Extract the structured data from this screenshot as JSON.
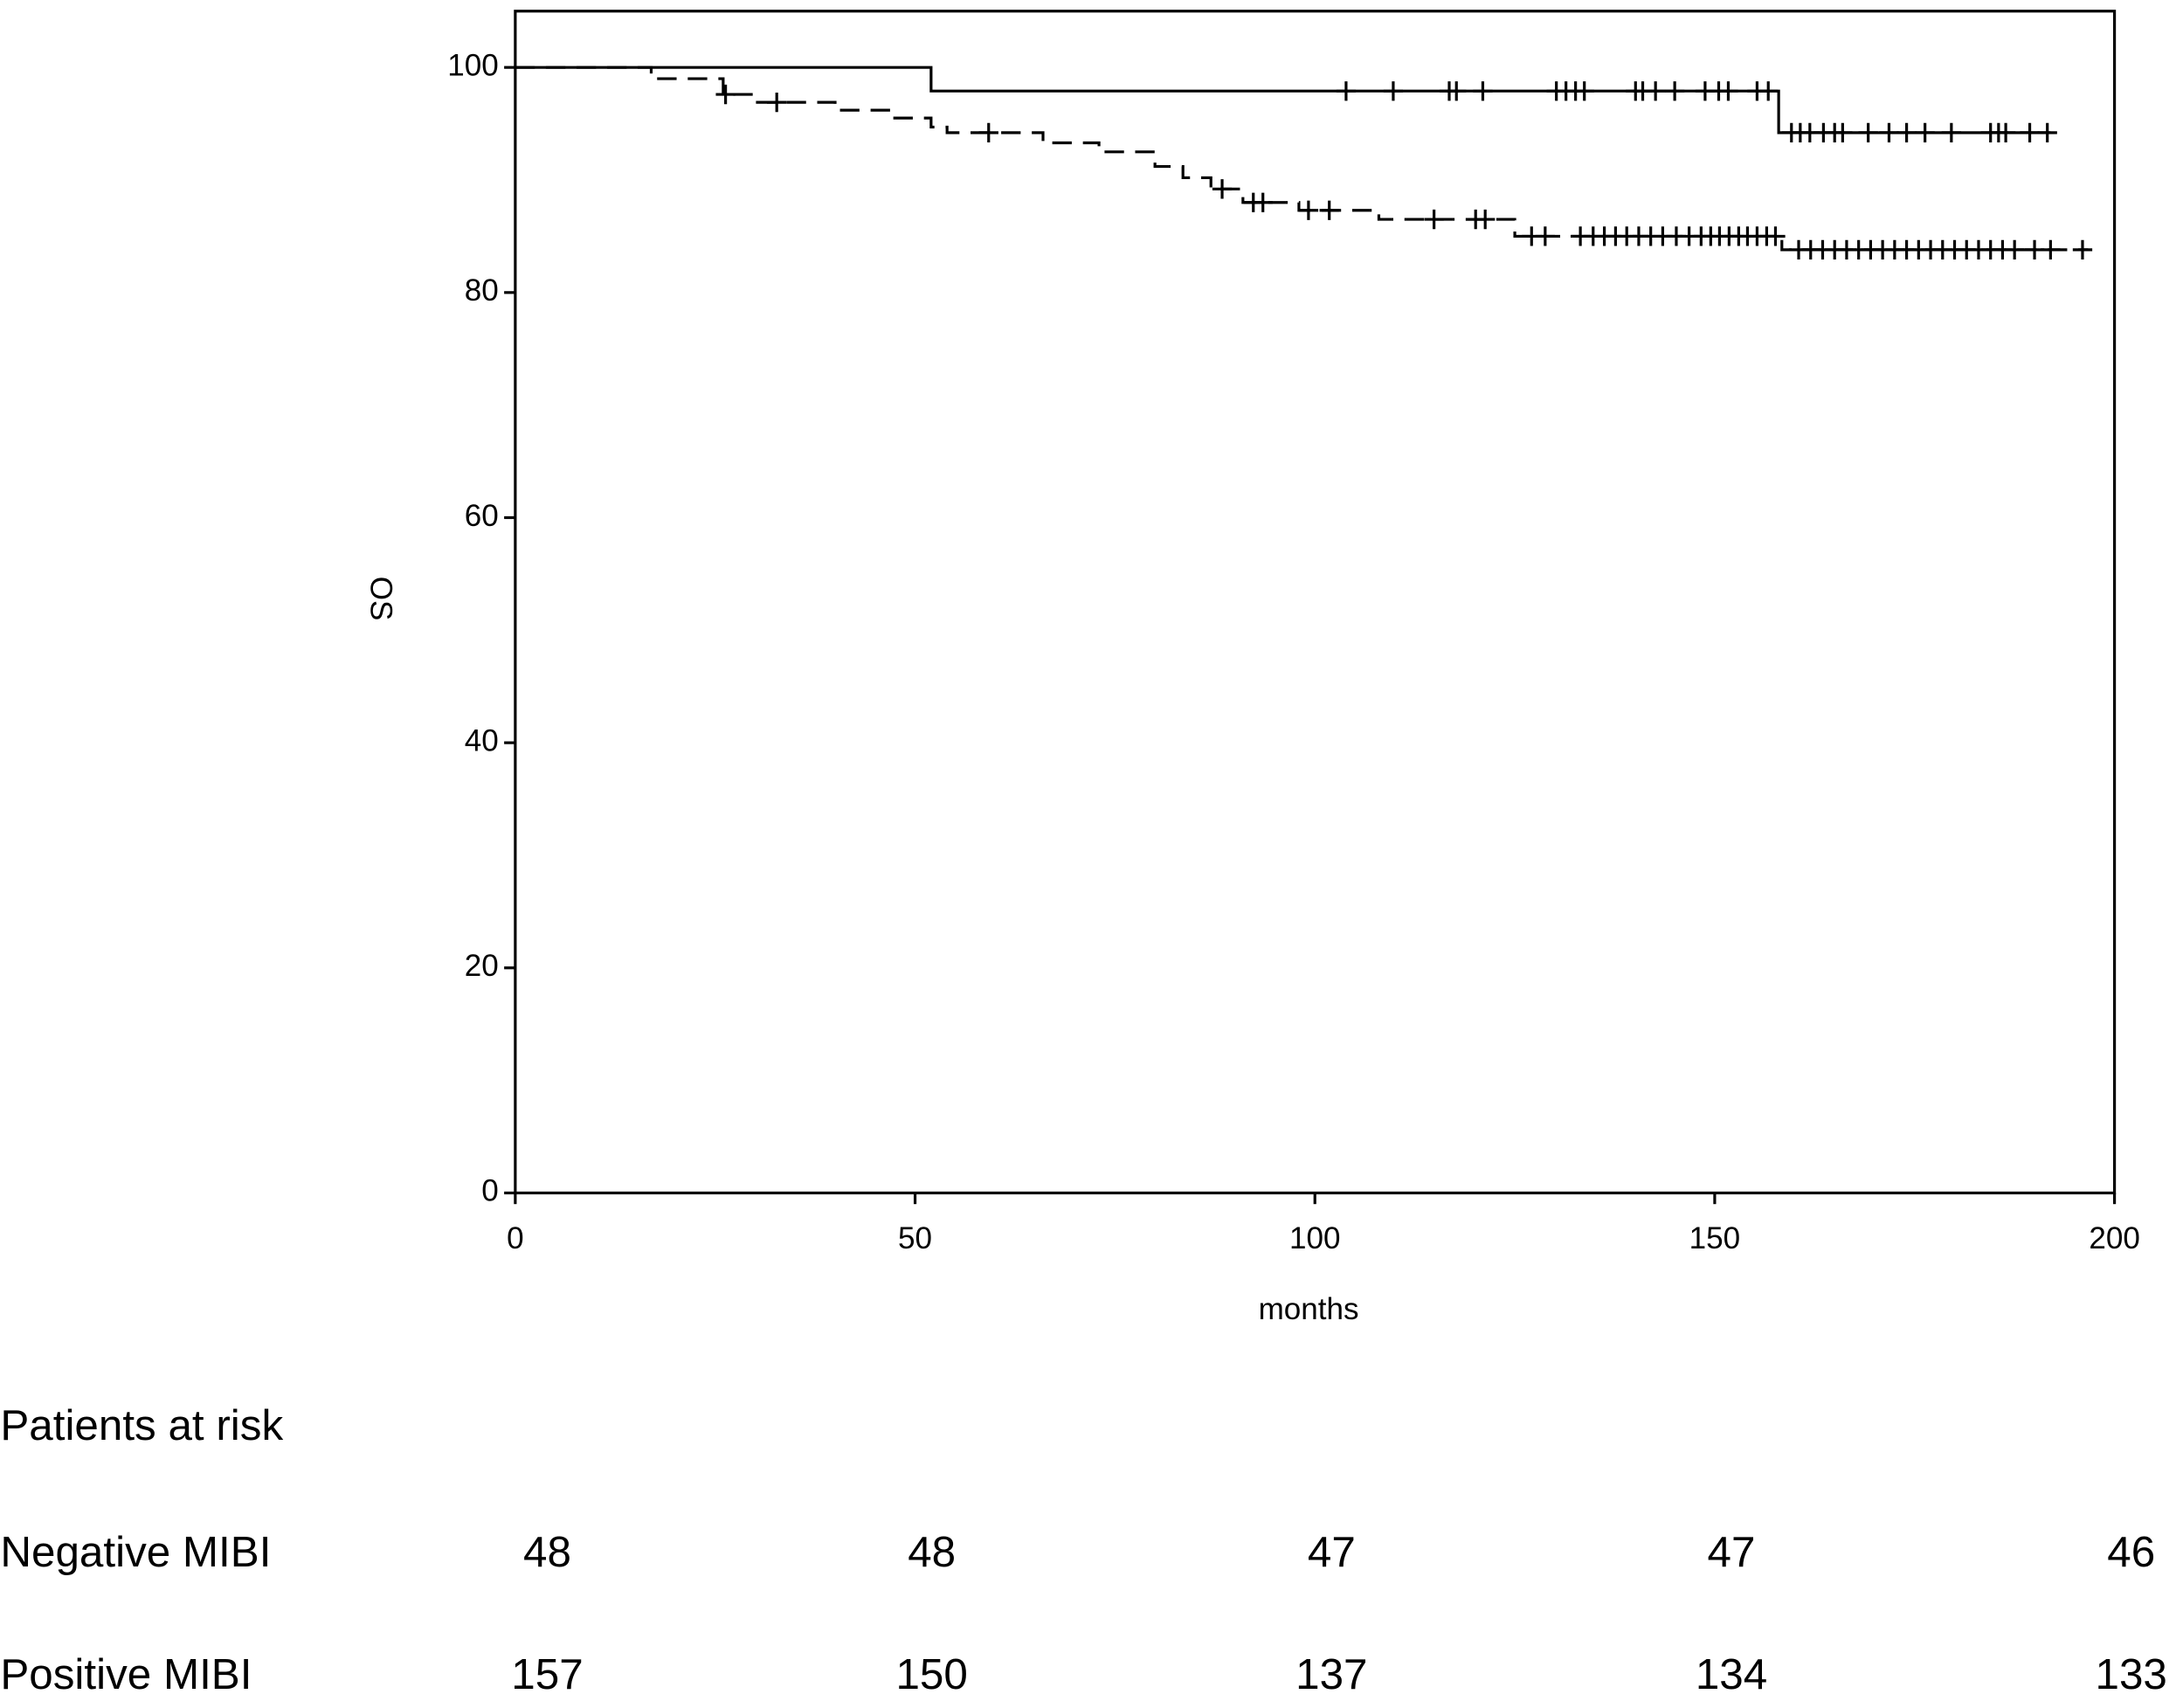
{
  "chart_data": {
    "type": "step",
    "xlabel": "months",
    "ylabel": "OS",
    "xlim": [
      0,
      200
    ],
    "ylim": [
      0,
      105
    ],
    "xticks": [
      0,
      50,
      100,
      150,
      200
    ],
    "yticks": [
      0,
      20,
      40,
      60,
      80,
      100
    ],
    "risk_title": "Patients at risk",
    "series": [
      {
        "name": "Negative MIBI",
        "color": "#000000",
        "dash": "solid",
        "x": [
          0,
          52,
          158,
          192
        ],
        "values": [
          100,
          97.9,
          94.2,
          94.2
        ],
        "censor_x": [
          103.9,
          109.8,
          116.8,
          117.7,
          121,
          130.2,
          131.4,
          132.6,
          133.7,
          140.1,
          141,
          142.6,
          145,
          148.8,
          150.5,
          151.7,
          155.3,
          156.7,
          159.6,
          160.7,
          161.9,
          163.6,
          165,
          166,
          169.2,
          171.8,
          174,
          176.3,
          179.6,
          184.5,
          185.5,
          186.4,
          189.4,
          191.6
        ],
        "censor_values": [
          97.9,
          97.9,
          97.9,
          97.9,
          97.9,
          97.9,
          97.9,
          97.9,
          97.9,
          97.9,
          97.9,
          97.9,
          97.9,
          97.9,
          97.9,
          97.9,
          97.9,
          97.9,
          94.2,
          94.2,
          94.2,
          94.2,
          94.2,
          94.2,
          94.2,
          94.2,
          94.2,
          94.2,
          94.2,
          94.2,
          94.2,
          94.2,
          94.2,
          94.2
        ],
        "at_risk": [
          48,
          48,
          47,
          47,
          46
        ]
      },
      {
        "name": "Positive MIBI",
        "color": "#000000",
        "dash": "dashed",
        "x": [
          0,
          17,
          26,
          30,
          40,
          47,
          52,
          54,
          66,
          73,
          80,
          83.5,
          87,
          91,
          98,
          108,
          125,
          158.4,
          196.7
        ],
        "values": [
          100,
          99.0,
          97.6,
          96.9,
          96.2,
          95.5,
          94.7,
          94.2,
          93.3,
          92.5,
          91.2,
          90.2,
          89.2,
          88.0,
          87.3,
          86.5,
          85.0,
          83.8,
          83.8
        ],
        "censor_x": [
          26.3,
          32.7,
          59.2,
          88.4,
          92.3,
          93.5,
          99.2,
          101.8,
          114.9,
          120.1,
          121.3,
          127.1,
          128.8,
          133.2,
          134.8,
          136.2,
          137.6,
          139,
          140.5,
          142,
          143.5,
          145.2,
          146.8,
          148.3,
          149.5,
          150.6,
          151.8,
          153,
          154.1,
          155.3,
          156.5,
          157.6,
          160.5,
          162,
          163.5,
          165,
          166.5,
          168,
          169.5,
          171,
          172.5,
          174,
          175.5,
          177,
          178.5,
          180,
          181.5,
          183,
          184.5,
          186,
          187.5,
          190,
          192,
          196
        ],
        "censor_values": [
          97.6,
          96.9,
          94.2,
          89.2,
          88.0,
          88.0,
          87.3,
          87.3,
          86.5,
          86.5,
          86.5,
          85.0,
          85.0,
          85.0,
          85.0,
          85.0,
          85.0,
          85.0,
          85.0,
          85.0,
          85.0,
          85.0,
          85.0,
          85.0,
          85.0,
          85.0,
          85.0,
          85.0,
          85.0,
          85.0,
          85.0,
          85.0,
          83.8,
          83.8,
          83.8,
          83.8,
          83.8,
          83.8,
          83.8,
          83.8,
          83.8,
          83.8,
          83.8,
          83.8,
          83.8,
          83.8,
          83.8,
          83.8,
          83.8,
          83.8,
          83.8,
          83.8,
          83.8,
          83.8
        ],
        "at_risk": [
          157,
          150,
          137,
          134,
          133
        ]
      }
    ]
  }
}
